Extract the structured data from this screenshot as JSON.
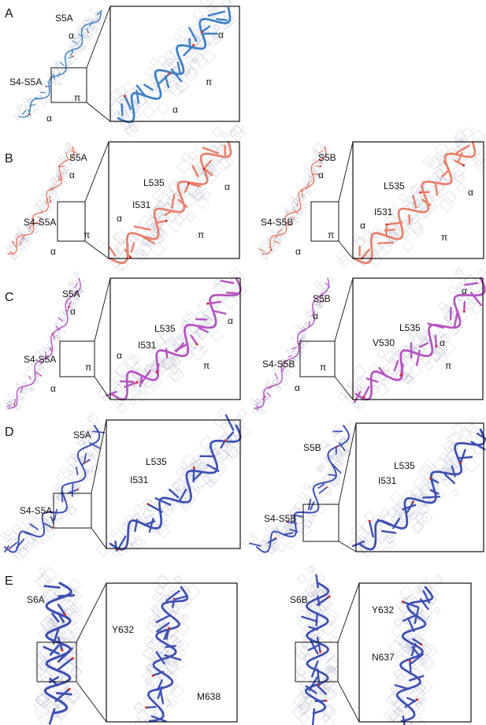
{
  "panels": [
    {
      "letter": "A",
      "views": [
        {
          "color": "#3e7fc4",
          "overview": {
            "labels": [
              "S5A",
              "α",
              "S4-S5A",
              "π",
              "α"
            ]
          },
          "zoom": {
            "labels": [
              "α",
              "π",
              "α"
            ]
          }
        }
      ]
    },
    {
      "letter": "B",
      "views": [
        {
          "color": "#e8806a",
          "overview": {
            "labels": [
              "S5A",
              "α",
              "S4-S5A",
              "π",
              "α"
            ]
          },
          "zoom": {
            "labels": [
              "L535",
              "α",
              "I531",
              "α",
              "π"
            ]
          }
        },
        {
          "color": "#e8806a",
          "overview": {
            "labels": [
              "S5B",
              "α",
              "S4-S5B",
              "π",
              "α"
            ]
          },
          "zoom": {
            "labels": [
              "L535",
              "α",
              "I531",
              "α",
              "π"
            ]
          }
        }
      ]
    },
    {
      "letter": "C",
      "views": [
        {
          "color": "#b454c0",
          "overview": {
            "labels": [
              "S5A",
              "α",
              "S4-S5A",
              "π",
              "α"
            ]
          },
          "zoom": {
            "labels": [
              "L535",
              "α",
              "I531",
              "α",
              "π"
            ]
          }
        },
        {
          "color": "#b454c0",
          "overview": {
            "labels": [
              "S5B",
              "α",
              "S4-S5B",
              "π",
              "α"
            ]
          },
          "zoom": {
            "labels": [
              "α",
              "L535",
              "V530",
              "α",
              "π"
            ]
          }
        }
      ]
    },
    {
      "letter": "D",
      "views": [
        {
          "color": "#3d4fb2",
          "overview": {
            "labels": [
              "S5A",
              "S4-S5A"
            ]
          },
          "zoom": {
            "labels": [
              "L535",
              "I531"
            ]
          }
        },
        {
          "color": "#3d4fb2",
          "overview": {
            "labels": [
              "S5B",
              "S4-S5B"
            ]
          },
          "zoom": {
            "labels": [
              "L535",
              "I531"
            ]
          }
        }
      ]
    },
    {
      "letter": "E",
      "views": [
        {
          "color": "#3d4fb2",
          "overview": {
            "labels": [
              "S6A"
            ]
          },
          "zoom": {
            "labels": [
              "Y632",
              "M638"
            ]
          }
        },
        {
          "color": "#3d4fb2",
          "overview": {
            "labels": [
              "S6B"
            ]
          },
          "zoom": {
            "labels": [
              "Y632",
              "N637"
            ]
          }
        }
      ]
    }
  ]
}
